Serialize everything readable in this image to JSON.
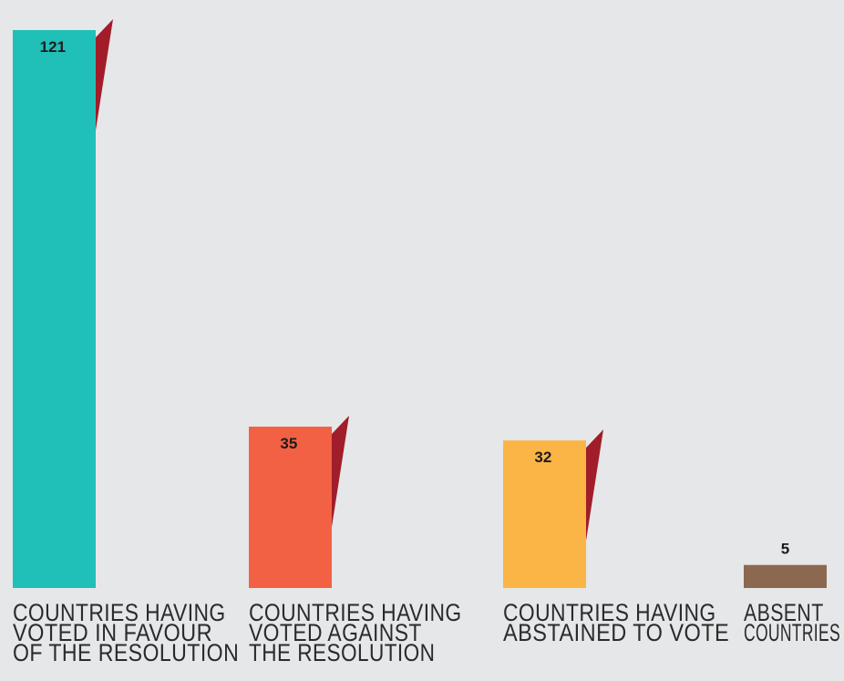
{
  "chart_data": {
    "type": "bar",
    "categories": [
      [
        "COUNTRIES HAVING",
        "VOTED IN FAVOUR",
        "OF THE RESOLUTION"
      ],
      [
        "COUNTRIES HAVING",
        "VOTED AGAINST",
        "THE RESOLUTION"
      ],
      [
        "COUNTRIES HAVING",
        "ABSTAINED TO VOTE"
      ],
      [
        "ABSENT",
        "COUNTRIES"
      ]
    ],
    "values": [
      121,
      35,
      32,
      5
    ],
    "value_labels": [
      "121",
      "35",
      "32",
      "5"
    ],
    "colors": [
      "#20bfb8",
      "#f26143",
      "#fbb446",
      "#8d6851"
    ],
    "accent_color": "#a11d2a",
    "background": "#e6e7e9",
    "grid": false,
    "legend": "none"
  }
}
